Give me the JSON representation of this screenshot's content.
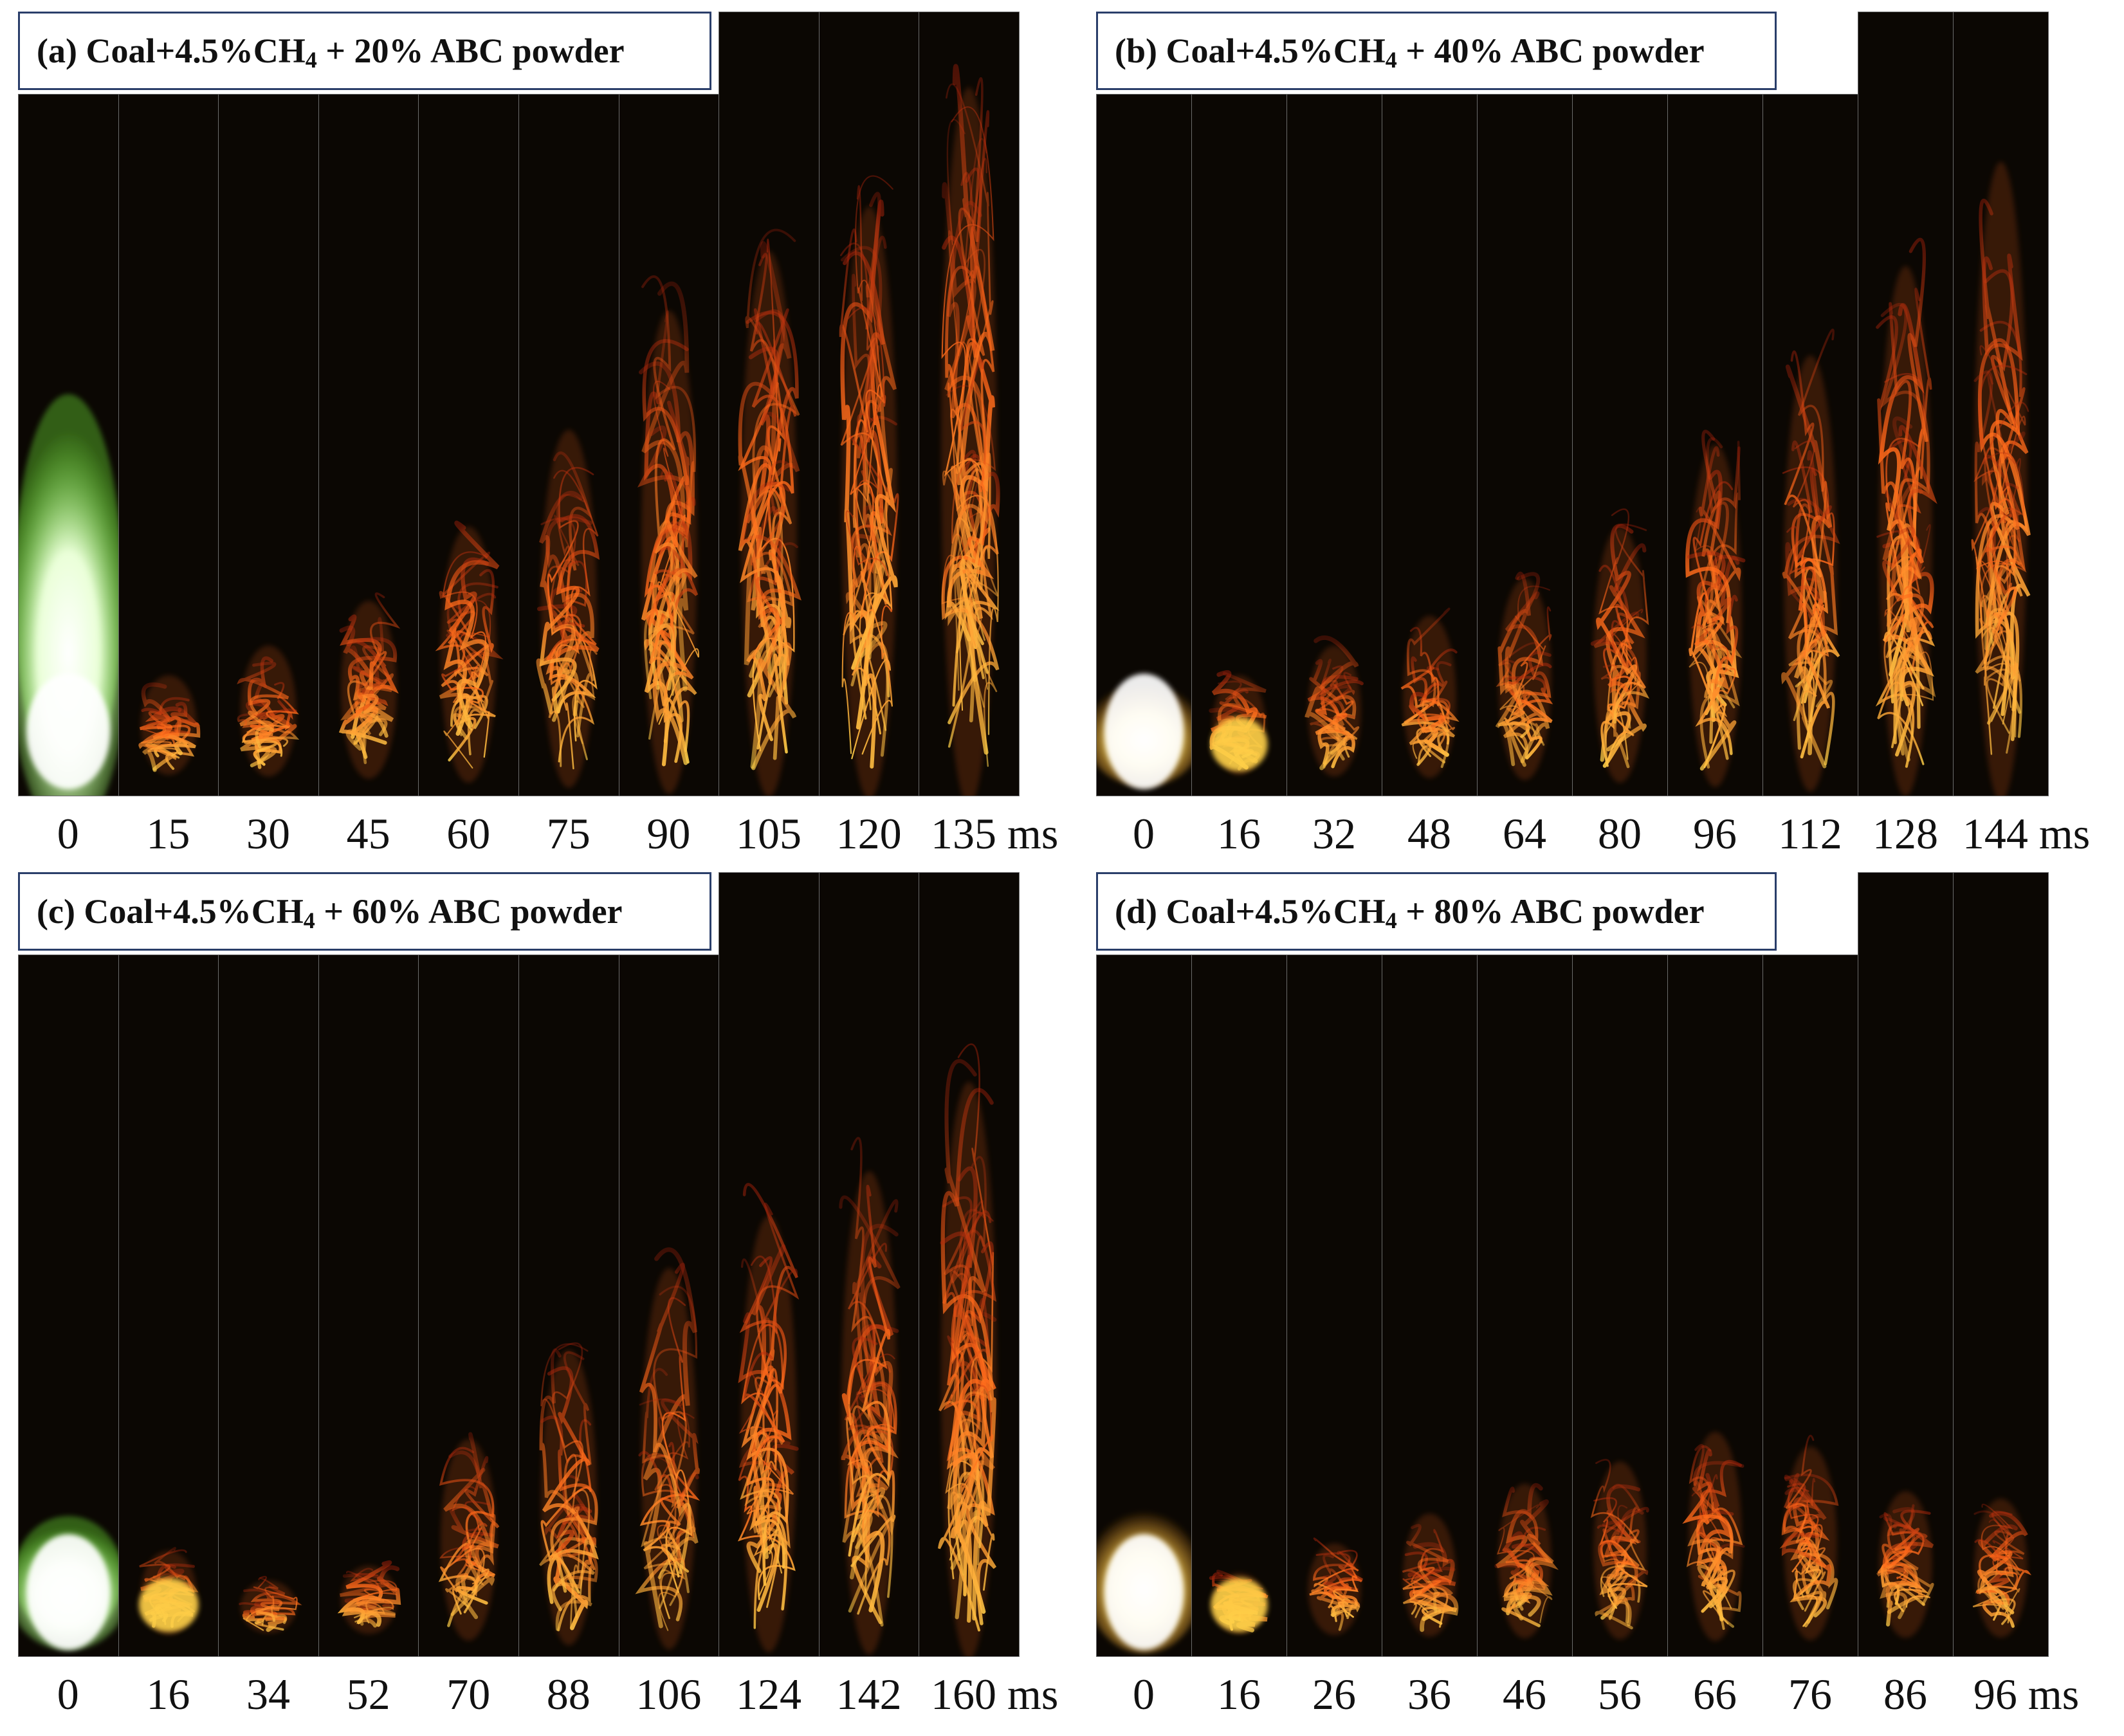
{
  "figure": {
    "panels": [
      {
        "id": "a",
        "title": {
          "prefix": "(a) Coal+4.5%CH",
          "sub": "4",
          "suffix": " + 20% ABC powder"
        },
        "time_labels": [
          "0",
          "15",
          "30",
          "45",
          "60",
          "75",
          "90",
          "105",
          "120",
          "135 ms"
        ],
        "flame_top_fraction": [
          0.45,
          0.16,
          0.2,
          0.26,
          0.36,
          0.49,
          0.65,
          0.73,
          0.79,
          0.95
        ],
        "first_frame_color": "green-white",
        "colors": {
          "flame": "#ff6a1a",
          "core": "#ffd24a",
          "first_frame": "#7cff3a"
        }
      },
      {
        "id": "b",
        "title": {
          "prefix": "(b) Coal+4.5%CH",
          "sub": "4",
          "suffix": " + 40% ABC powder"
        },
        "time_labels": [
          "0",
          "16",
          "32",
          "48",
          "64",
          "80",
          "96",
          "112",
          "128",
          "144 ms"
        ],
        "flame_top_fraction": [
          0.14,
          0.16,
          0.2,
          0.24,
          0.29,
          0.36,
          0.47,
          0.59,
          0.71,
          0.85
        ],
        "first_frame_color": "yellow",
        "colors": {
          "flame": "#ff6a1a",
          "core": "#ffd24a",
          "first_frame": "#ffd84a"
        }
      },
      {
        "id": "c",
        "title": {
          "prefix": "(c) Coal+4.5%CH",
          "sub": "4",
          "suffix": " + 60% ABC powder"
        },
        "time_labels": [
          "0",
          "16",
          "34",
          "52",
          "70",
          "88",
          "106",
          "124",
          "142",
          "160 ms"
        ],
        "flame_top_fraction": [
          0.16,
          0.14,
          0.1,
          0.12,
          0.29,
          0.41,
          0.52,
          0.59,
          0.65,
          0.77
        ],
        "first_frame_color": "green-white",
        "colors": {
          "flame": "#ff6a1a",
          "core": "#ffd24a",
          "first_frame": "#7cff3a"
        }
      },
      {
        "id": "d",
        "title": {
          "prefix": "(d) Coal+4.5%CH",
          "sub": "4",
          "suffix": " + 80% ABC powder"
        },
        "time_labels": [
          "0",
          "16",
          "26",
          "36",
          "46",
          "56",
          "66",
          "76",
          "86",
          "96 ms"
        ],
        "flame_top_fraction": [
          0.18,
          0.11,
          0.15,
          0.19,
          0.23,
          0.26,
          0.3,
          0.28,
          0.22,
          0.21
        ],
        "first_frame_color": "yellow",
        "colors": {
          "flame": "#ff6a1a",
          "core": "#ffd24a",
          "first_frame": "#ffd84a"
        }
      }
    ]
  }
}
